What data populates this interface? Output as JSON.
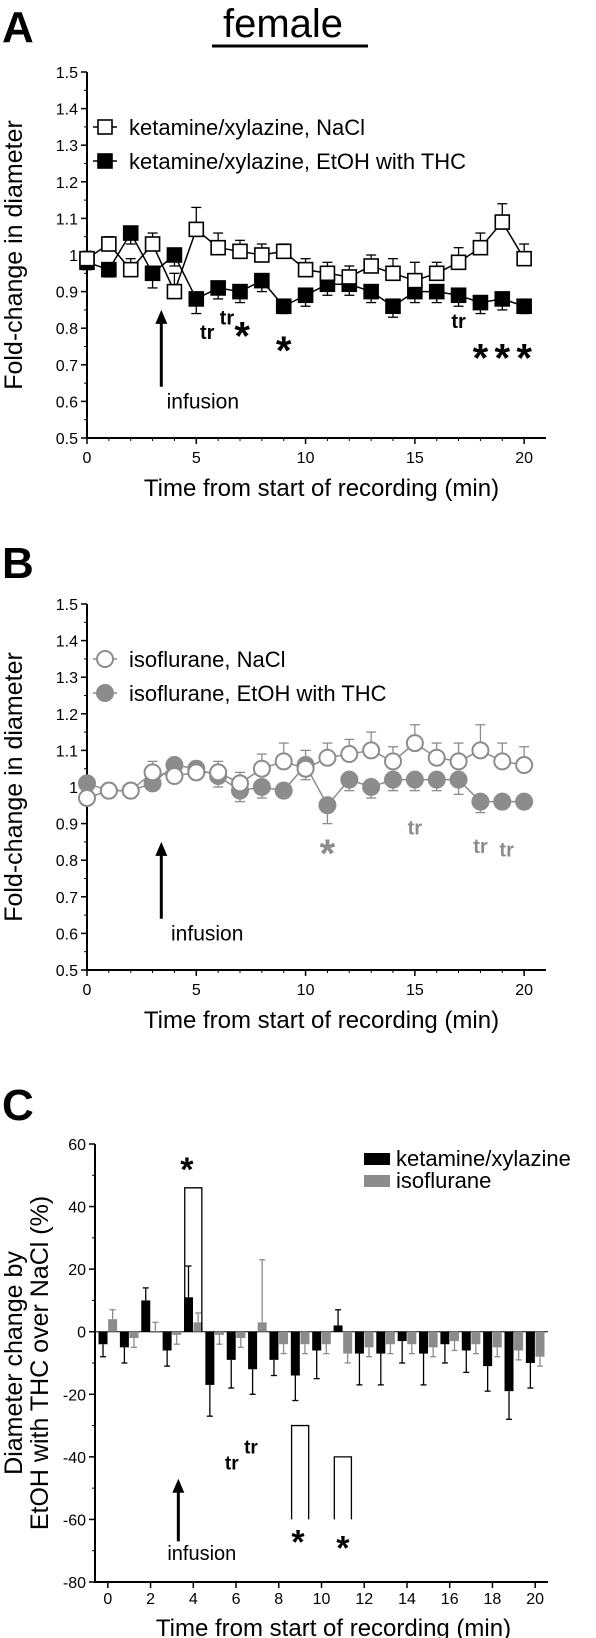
{
  "figure": {
    "title": "female",
    "panels": [
      "A",
      "B",
      "C"
    ]
  },
  "colors": {
    "ketamine": "#000000",
    "isoflurane": "#8c8c8c",
    "isoflurane_points": "#bfbfbf"
  },
  "chart_data": [
    {
      "panel": "A",
      "type": "line",
      "xlabel": "Time from start of recording (min)",
      "ylabel": "Fold-change in diameter",
      "xlim": [
        0,
        21
      ],
      "ylim": [
        0.5,
        1.5
      ],
      "xticks": [
        0,
        5,
        10,
        15,
        20
      ],
      "yticks": [
        0.5,
        0.6,
        0.7,
        0.8,
        0.9,
        1.0,
        1.1,
        1.2,
        1.3,
        1.4,
        1.5
      ],
      "x": [
        0,
        1,
        2,
        3,
        4,
        5,
        6,
        7,
        8,
        9,
        10,
        11,
        12,
        13,
        14,
        15,
        16,
        17,
        18,
        19,
        20
      ],
      "series": [
        {
          "name": "ketamine/xylazine, NaCl",
          "marker": "open-square",
          "values": [
            0.99,
            1.03,
            0.96,
            1.03,
            0.9,
            1.07,
            1.02,
            1.01,
            1.0,
            1.01,
            0.96,
            0.95,
            0.94,
            0.97,
            0.95,
            0.93,
            0.95,
            0.98,
            1.02,
            1.09,
            0.99
          ],
          "errors": [
            0.02,
            0.02,
            0.03,
            0.03,
            0.05,
            0.06,
            0.04,
            0.03,
            0.03,
            0.02,
            0.03,
            0.03,
            0.03,
            0.03,
            0.04,
            0.05,
            0.03,
            0.04,
            0.04,
            0.05,
            0.04
          ]
        },
        {
          "name": "ketamine/xylazine, EtOH with THC",
          "marker": "filled-square",
          "values": [
            0.98,
            0.96,
            1.06,
            0.95,
            1.0,
            0.88,
            0.91,
            0.9,
            0.93,
            0.86,
            0.89,
            0.92,
            0.92,
            0.9,
            0.86,
            0.9,
            0.9,
            0.89,
            0.87,
            0.88,
            0.86
          ],
          "errors": [
            0.02,
            0.02,
            0.03,
            0.04,
            0.03,
            0.04,
            0.03,
            0.03,
            0.03,
            0.02,
            0.03,
            0.03,
            0.03,
            0.03,
            0.03,
            0.03,
            0.03,
            0.03,
            0.03,
            0.03,
            0.02
          ]
        }
      ],
      "annotations": [
        {
          "text": "tr",
          "x": 5.5,
          "y": 0.77,
          "color": "black"
        },
        {
          "text": "tr",
          "x": 6.4,
          "y": 0.81,
          "color": "black"
        },
        {
          "text": "*",
          "x": 7.1,
          "y": 0.78,
          "color": "black"
        },
        {
          "text": "*",
          "x": 9.0,
          "y": 0.74,
          "color": "black"
        },
        {
          "text": "tr",
          "x": 17.0,
          "y": 0.8,
          "color": "black"
        },
        {
          "text": "*",
          "x": 18.0,
          "y": 0.72,
          "color": "black"
        },
        {
          "text": "*",
          "x": 19.0,
          "y": 0.72,
          "color": "black"
        },
        {
          "text": "*",
          "x": 20.0,
          "y": 0.72,
          "color": "black"
        },
        {
          "text": "infusion",
          "x": 5.3,
          "y": 0.58,
          "color": "black"
        }
      ],
      "arrow": {
        "x": 3.4,
        "y_from": 0.64,
        "y_to": 0.85
      },
      "legend_position": "top-left"
    },
    {
      "panel": "B",
      "type": "line",
      "xlabel": "Time from start of recording (min)",
      "ylabel": "Fold-change in diameter",
      "xlim": [
        0,
        21
      ],
      "ylim": [
        0.5,
        1.5
      ],
      "xticks": [
        0,
        5,
        10,
        15,
        20
      ],
      "yticks": [
        0.5,
        0.6,
        0.7,
        0.8,
        0.9,
        1.0,
        1.1,
        1.2,
        1.3,
        1.4,
        1.5
      ],
      "x": [
        0,
        1,
        2,
        3,
        4,
        5,
        6,
        7,
        8,
        9,
        10,
        11,
        12,
        13,
        14,
        15,
        16,
        17,
        18,
        19,
        20
      ],
      "series": [
        {
          "name": "isoflurane, NaCl",
          "marker": "open-circle",
          "values": [
            0.97,
            0.99,
            0.99,
            1.04,
            1.03,
            1.04,
            1.04,
            1.01,
            1.05,
            1.07,
            1.05,
            1.08,
            1.09,
            1.1,
            1.07,
            1.12,
            1.08,
            1.07,
            1.1,
            1.07,
            1.06
          ],
          "errors": [
            0.03,
            0.02,
            0.02,
            0.03,
            0.03,
            0.03,
            0.03,
            0.03,
            0.04,
            0.05,
            0.05,
            0.04,
            0.04,
            0.05,
            0.04,
            0.05,
            0.04,
            0.05,
            0.07,
            0.05,
            0.05
          ]
        },
        {
          "name": "isoflurane, EtOH with THC",
          "marker": "filled-circle",
          "values": [
            1.01,
            0.99,
            0.99,
            1.01,
            1.06,
            1.05,
            1.03,
            0.99,
            1.0,
            0.99,
            1.06,
            0.95,
            1.02,
            1.0,
            1.02,
            1.02,
            1.02,
            1.02,
            0.96,
            0.96,
            0.96
          ],
          "errors": [
            0.02,
            0.02,
            0.02,
            0.02,
            0.03,
            0.03,
            0.03,
            0.03,
            0.03,
            0.02,
            0.04,
            0.05,
            0.03,
            0.03,
            0.03,
            0.03,
            0.03,
            0.04,
            0.03,
            0.02,
            0.02
          ]
        }
      ],
      "annotations": [
        {
          "text": "*",
          "x": 11.0,
          "y": 0.82,
          "color": "gray"
        },
        {
          "text": "tr",
          "x": 15.0,
          "y": 0.87,
          "color": "gray"
        },
        {
          "text": "tr",
          "x": 18.0,
          "y": 0.82,
          "color": "gray"
        },
        {
          "text": "tr",
          "x": 19.2,
          "y": 0.81,
          "color": "gray"
        },
        {
          "text": "infusion",
          "x": 5.5,
          "y": 0.58,
          "color": "black"
        }
      ],
      "arrow": {
        "x": 3.4,
        "y_from": 0.64,
        "y_to": 0.85
      },
      "legend_position": "top-left"
    },
    {
      "panel": "C",
      "type": "bar",
      "xlabel": "Time from start of recording (min)",
      "ylabel_lines": [
        "Diameter change by",
        "EtOH with THC over NaCl (%)"
      ],
      "xlim": [
        -0.6,
        20.6
      ],
      "ylim": [
        -80,
        60
      ],
      "xticks": [
        0,
        2,
        4,
        6,
        8,
        10,
        12,
        14,
        16,
        18,
        20
      ],
      "yticks": [
        -80,
        -60,
        -40,
        -20,
        0,
        20,
        40,
        60
      ],
      "x": [
        0,
        1,
        2,
        3,
        4,
        5,
        6,
        7,
        8,
        9,
        10,
        11,
        12,
        13,
        14,
        15,
        16,
        17,
        18,
        19,
        20
      ],
      "series": [
        {
          "name": "ketamine/xylazine",
          "values": [
            -4,
            -5,
            10,
            -6,
            11,
            -17,
            -9,
            -12,
            -9,
            -14,
            -6,
            2,
            -7,
            -7,
            -3,
            -7,
            -4,
            -6,
            -11,
            -19,
            -10
          ],
          "errors": [
            4,
            5,
            4,
            5,
            10,
            10,
            9,
            8,
            5,
            8,
            9,
            5,
            10,
            10,
            7,
            10,
            6,
            7,
            8,
            9,
            8
          ]
        },
        {
          "name": "isoflurane",
          "values": [
            4,
            -2,
            0,
            -1,
            3,
            -1,
            -2,
            3,
            -4,
            -4,
            -4,
            -7,
            -5,
            -4,
            -4,
            -5,
            -3,
            -4,
            -5,
            -6,
            -8
          ],
          "errors": [
            3,
            3,
            3,
            3,
            3,
            3,
            3,
            20,
            3,
            3,
            3,
            3,
            3,
            3,
            3,
            3,
            3,
            3,
            3,
            3,
            3
          ]
        }
      ],
      "annotations": [
        {
          "text": "*",
          "x": 3.7,
          "y": 52,
          "color": "black"
        },
        {
          "text": "tr",
          "x": 5.8,
          "y": -44,
          "color": "black"
        },
        {
          "text": "tr",
          "x": 6.7,
          "y": -39,
          "color": "black"
        },
        {
          "text": "*",
          "x": 8.9,
          "y": -67,
          "color": "black"
        },
        {
          "text": "*",
          "x": 11.0,
          "y": -69,
          "color": "black"
        },
        {
          "text": "infusion",
          "x": 4.4,
          "y": -73,
          "color": "black"
        }
      ],
      "brackets": [
        {
          "x1": 3.6,
          "x2": 4.4,
          "y_top": 46,
          "y_bottom": 0
        },
        {
          "x1": 8.6,
          "x2": 9.4,
          "y_top": -30,
          "y_bottom": -60
        },
        {
          "x1": 10.6,
          "x2": 11.4,
          "y_top": -40,
          "y_bottom": -60
        }
      ],
      "arrow": {
        "x": 3.3,
        "y_from": -67,
        "y_to": -47
      },
      "legend_position": "top-right"
    }
  ]
}
